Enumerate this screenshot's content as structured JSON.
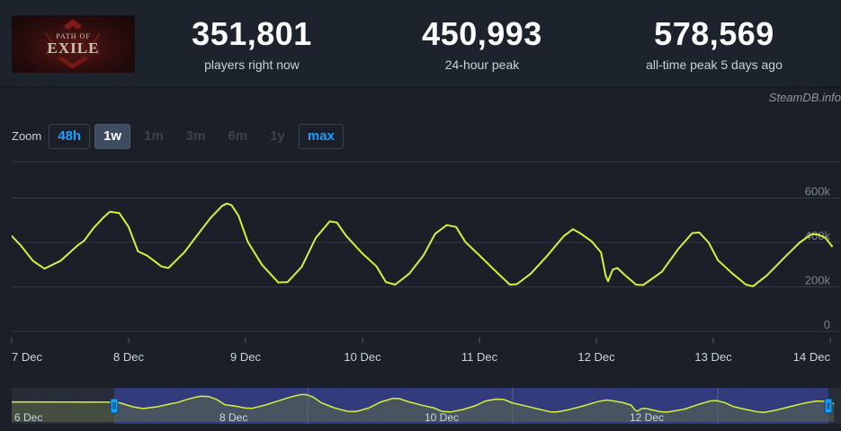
{
  "game": {
    "logo_top": "PATH OF",
    "logo_bottom": "EXILE"
  },
  "stats": [
    {
      "value": "351,801",
      "label": "players right now"
    },
    {
      "value": "450,993",
      "label": "24-hour peak"
    },
    {
      "value": "578,569",
      "label": "all-time peak 5 days ago"
    }
  ],
  "credit": "SteamDB.info",
  "zoom": {
    "label": "Zoom",
    "buttons": [
      {
        "label": "48h",
        "state": "link"
      },
      {
        "label": "1w",
        "state": "selected"
      },
      {
        "label": "1m",
        "state": "disabled"
      },
      {
        "label": "3m",
        "state": "disabled"
      },
      {
        "label": "6m",
        "state": "disabled"
      },
      {
        "label": "1y",
        "state": "disabled"
      },
      {
        "label": "max",
        "state": "link"
      }
    ]
  },
  "colors": {
    "line": "#d7f03a",
    "grid": "#323a46",
    "nav_band": "#35408a",
    "nav_line": "#d7f03a"
  },
  "chart_data": {
    "type": "line",
    "xlabel": "",
    "ylabel": "",
    "ylim": [
      0,
      600000
    ],
    "y_ticks": [
      {
        "value": 0,
        "label": "0"
      },
      {
        "value": 200000,
        "label": "200k"
      },
      {
        "value": 400000,
        "label": "400k"
      },
      {
        "value": 600000,
        "label": "600k"
      }
    ],
    "x_ticks": [
      "7 Dec",
      "8 Dec",
      "9 Dec",
      "10 Dec",
      "11 Dec",
      "12 Dec",
      "13 Dec",
      "14 Dec"
    ],
    "x_unit": "days since 7 Dec 00:00",
    "series": [
      {
        "points": [
          [
            -0.02,
            440000
          ],
          [
            0.08,
            385000
          ],
          [
            0.18,
            318000
          ],
          [
            0.28,
            282000
          ],
          [
            0.42,
            318000
          ],
          [
            0.56,
            385000
          ],
          [
            0.62,
            408000
          ],
          [
            0.7,
            465000
          ],
          [
            0.78,
            510000
          ],
          [
            0.84,
            538000
          ],
          [
            0.92,
            532000
          ],
          [
            1.0,
            470000
          ],
          [
            1.08,
            360000
          ],
          [
            1.16,
            340000
          ],
          [
            1.28,
            292000
          ],
          [
            1.34,
            285000
          ],
          [
            1.48,
            358000
          ],
          [
            1.58,
            428000
          ],
          [
            1.7,
            510000
          ],
          [
            1.8,
            565000
          ],
          [
            1.84,
            575000
          ],
          [
            1.88,
            568000
          ],
          [
            1.94,
            520000
          ],
          [
            2.02,
            402000
          ],
          [
            2.14,
            300000
          ],
          [
            2.28,
            220000
          ],
          [
            2.36,
            222000
          ],
          [
            2.48,
            290000
          ],
          [
            2.6,
            420000
          ],
          [
            2.72,
            495000
          ],
          [
            2.78,
            490000
          ],
          [
            2.86,
            430000
          ],
          [
            3.0,
            350000
          ],
          [
            3.12,
            292000
          ],
          [
            3.2,
            222000
          ],
          [
            3.28,
            210000
          ],
          [
            3.4,
            260000
          ],
          [
            3.52,
            340000
          ],
          [
            3.62,
            438000
          ],
          [
            3.72,
            478000
          ],
          [
            3.8,
            470000
          ],
          [
            3.88,
            402000
          ],
          [
            4.0,
            342000
          ],
          [
            4.12,
            280000
          ],
          [
            4.26,
            210000
          ],
          [
            4.32,
            212000
          ],
          [
            4.44,
            260000
          ],
          [
            4.58,
            340000
          ],
          [
            4.72,
            428000
          ],
          [
            4.8,
            460000
          ],
          [
            4.86,
            442000
          ],
          [
            4.96,
            405000
          ],
          [
            5.04,
            355000
          ],
          [
            5.08,
            250000
          ],
          [
            5.1,
            225000
          ],
          [
            5.14,
            278000
          ],
          [
            5.18,
            285000
          ],
          [
            5.24,
            255000
          ],
          [
            5.34,
            210000
          ],
          [
            5.4,
            208000
          ],
          [
            5.56,
            268000
          ],
          [
            5.7,
            370000
          ],
          [
            5.82,
            442000
          ],
          [
            5.88,
            445000
          ],
          [
            5.96,
            400000
          ],
          [
            6.04,
            320000
          ],
          [
            6.16,
            262000
          ],
          [
            6.28,
            210000
          ],
          [
            6.34,
            203000
          ],
          [
            6.46,
            252000
          ],
          [
            6.62,
            338000
          ],
          [
            6.74,
            400000
          ],
          [
            6.84,
            437000
          ],
          [
            6.9,
            435000
          ],
          [
            6.96,
            420000
          ],
          [
            7.02,
            380000
          ]
        ]
      }
    ],
    "navigator": {
      "x_ticks": [
        "6 Dec",
        "8 Dec",
        "10 Dec",
        "12 Dec"
      ],
      "selection_from": 1.0,
      "selection_to": 9.0
    }
  }
}
